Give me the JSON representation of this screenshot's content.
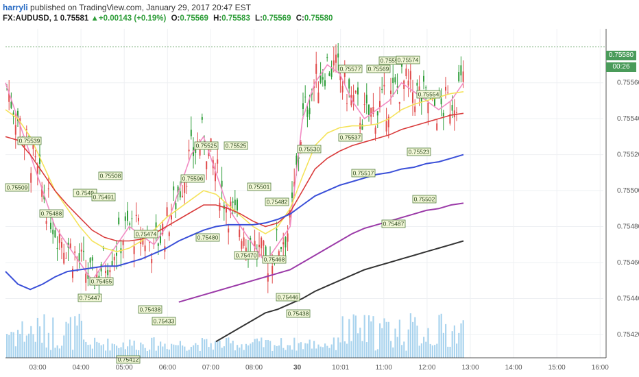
{
  "header": {
    "username": "harryli",
    "published_text": " published on TradingView.com, January 29, 2017 20:47 EST",
    "symbol": "FX:AUDUSD, 1",
    "last": "0.75581",
    "change": "+0.00143 (+0.19%)",
    "o_label": "O:",
    "o_value": "0.75569",
    "h_label": "H:",
    "h_value": "0.75583",
    "l_label": "L:",
    "l_value": "0.75569",
    "c_label": "C:",
    "c_value": "0.75580"
  },
  "price_scale": {
    "current_price": "0.75580",
    "countdown": "00:26"
  },
  "colors": {
    "up": "#2e9d39",
    "down": "#e04a4a",
    "ema_fast": "#f28cc4",
    "ema_mid": "#f5e35a",
    "ema_slow_red": "#d93b3b",
    "ema_blue": "#3a4fd8",
    "ema_purple": "#9b3aa8",
    "ema_black": "#333333",
    "volume": "#8ec6e8",
    "tag_bg": "#6ea86e"
  },
  "chart_data": {
    "type": "line",
    "symbol": "FX:AUDUSD",
    "interval": "1",
    "y_ticks": [
      "0.75560",
      "0.75540",
      "0.75520",
      "0.75500",
      "0.75480",
      "0.75460",
      "0.75440",
      "0.75420"
    ],
    "x_ticks": [
      "03:00",
      "04:00",
      "05:00",
      "06:00",
      "07:00",
      "08:00",
      "30",
      "10:01",
      "11:00",
      "12:00",
      "13:00",
      "14:00",
      "15:00",
      "16:00"
    ],
    "ylim": [
      0.75407,
      0.7559
    ],
    "grid": true,
    "price_labels": [
      "0.75509",
      "0.75539",
      "0.75488",
      "0.75447",
      "0.75508",
      "0.7549",
      "0.75491",
      "0.75455",
      "0.75474",
      "0.75438",
      "0.75433",
      "0.75412",
      "0.75596",
      "0.75525",
      "0.75525",
      "0.75480",
      "0.75470",
      "0.75501",
      "0.75468",
      "0.75482",
      "0.75446",
      "0.75438",
      "0.75530",
      "0.75577",
      "0.75537",
      "0.75517",
      "0.75569",
      "0.75557",
      "0.75574",
      "0.75554",
      "0.75523",
      "0.75487",
      "0.75502"
    ],
    "series": [
      {
        "values": [
          0.7556,
          0.7554,
          0.7552,
          0.755,
          0.7548,
          0.7547,
          0.7546,
          0.7545,
          0.7546,
          0.7547,
          0.7548,
          0.75475,
          0.7547,
          0.7548,
          0.755,
          0.7552,
          0.7553,
          0.7551,
          0.7549,
          0.7548,
          0.7547,
          0.7546,
          0.7547,
          0.7548,
          0.7554,
          0.7556,
          0.7557,
          0.75565,
          0.7555,
          0.7554,
          0.75545,
          0.7555,
          0.7556,
          0.75555,
          0.7555,
          0.75545,
          0.7555,
          0.7556
        ]
      },
      {
        "values": [
          0.75545,
          0.7554,
          0.7553,
          0.75515,
          0.755,
          0.7549,
          0.7548,
          0.75472,
          0.75468,
          0.75466,
          0.75468,
          0.75472,
          0.75478,
          0.75485,
          0.7549,
          0.75495,
          0.755,
          0.75498,
          0.75492,
          0.75486,
          0.7548,
          0.75476,
          0.7548,
          0.7549,
          0.75508,
          0.75525,
          0.75532,
          0.75535,
          0.75536,
          0.75536,
          0.75537,
          0.7554,
          0.75545,
          0.75548,
          0.7555,
          0.75552,
          0.75554,
          0.75555
        ]
      },
      {
        "values": [
          0.7553,
          0.75528,
          0.7552,
          0.7551,
          0.755,
          0.75492,
          0.75485,
          0.75478,
          0.75474,
          0.75472,
          0.75472,
          0.75473,
          0.75476,
          0.7548,
          0.75484,
          0.75488,
          0.75492,
          0.75492,
          0.7549,
          0.75487,
          0.75483,
          0.7548,
          0.75482,
          0.75488,
          0.755,
          0.75512,
          0.75518,
          0.75522,
          0.75525,
          0.75527,
          0.75529,
          0.75531,
          0.75534,
          0.75536,
          0.75538,
          0.7554,
          0.75542,
          0.75543
        ]
      },
      {
        "values": [
          0.75455,
          0.75448,
          0.75445,
          0.75448,
          0.75452,
          0.75455,
          0.75456,
          0.75457,
          0.75458,
          0.75458,
          0.7546,
          0.75462,
          0.75465,
          0.75468,
          0.75472,
          0.75475,
          0.75478,
          0.7548,
          0.75481,
          0.75481,
          0.75481,
          0.75482,
          0.75484,
          0.75487,
          0.75492,
          0.75497,
          0.755,
          0.75503,
          0.75505,
          0.75507,
          0.75509,
          0.7551,
          0.75512,
          0.75513,
          0.75515,
          0.75516,
          0.75518,
          0.7552
        ]
      },
      {
        "values": [
          null,
          null,
          null,
          null,
          null,
          null,
          null,
          null,
          null,
          null,
          null,
          null,
          null,
          null,
          0.75438,
          0.7544,
          0.75442,
          0.75444,
          0.75446,
          0.75448,
          0.7545,
          0.75452,
          0.75454,
          0.75456,
          0.7546,
          0.75464,
          0.75468,
          0.75472,
          0.75476,
          0.75479,
          0.75481,
          0.75483,
          0.75485,
          0.75487,
          0.75489,
          0.7549,
          0.75492,
          0.75493
        ]
      },
      {
        "values": [
          null,
          null,
          null,
          null,
          null,
          null,
          null,
          null,
          null,
          null,
          null,
          null,
          null,
          null,
          null,
          null,
          null,
          0.75416,
          0.7542,
          0.75424,
          0.75428,
          0.75432,
          0.75434,
          0.75437,
          0.7544,
          0.75444,
          0.75447,
          0.7545,
          0.75453,
          0.75456,
          0.75458,
          0.7546,
          0.75462,
          0.75464,
          0.75466,
          0.75468,
          0.7547,
          0.75472
        ]
      }
    ]
  }
}
